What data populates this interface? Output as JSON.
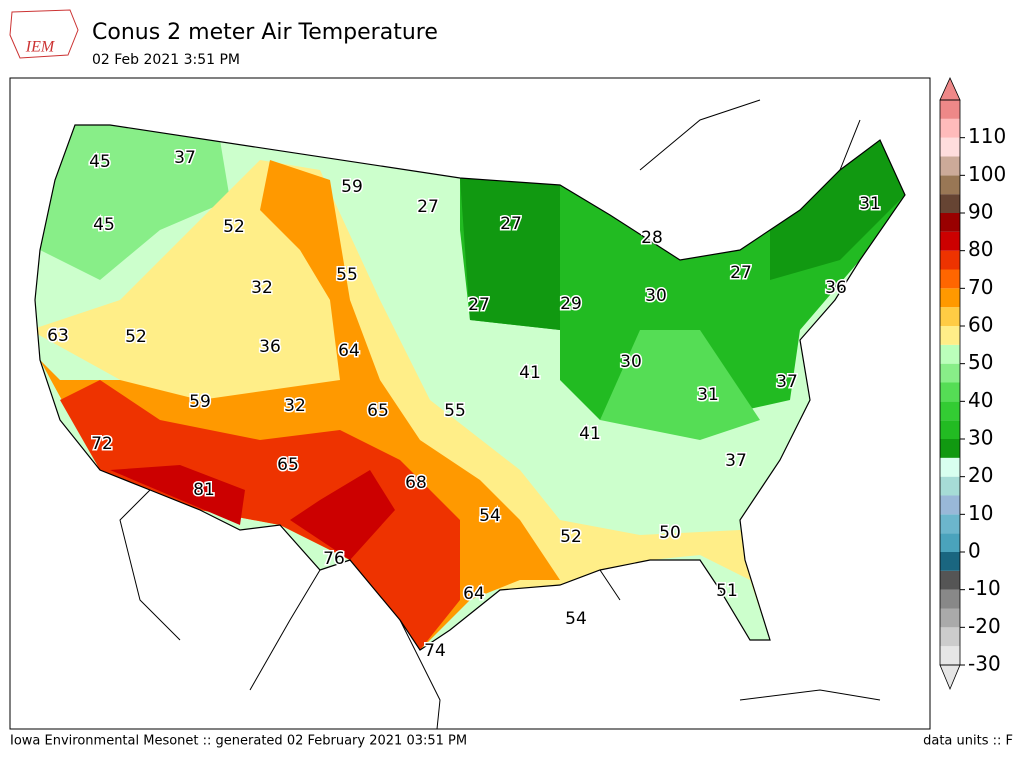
{
  "header": {
    "logo": "IEM",
    "title": "Conus 2 meter Air Temperature",
    "subtitle": "02 Feb 2021 3:51 PM"
  },
  "map": {
    "labels": [
      45,
      37,
      59,
      27,
      27,
      31,
      45,
      52,
      28,
      27,
      55,
      32,
      36,
      30,
      27,
      29,
      63,
      52,
      36,
      64,
      30,
      41,
      37,
      31,
      59,
      32,
      65,
      55,
      41,
      72,
      37,
      65,
      68,
      81,
      54,
      50,
      52,
      76,
      51,
      64,
      54,
      74
    ]
  },
  "colorbar": {
    "lim": [
      -30,
      120
    ],
    "ticks": [
      -30,
      -20,
      -10,
      0,
      10,
      20,
      30,
      40,
      50,
      60,
      70,
      80,
      90,
      100,
      110
    ],
    "colors": [
      "#e6e6e6",
      "#cccccc",
      "#aaaaaa",
      "#888888",
      "#555555",
      "#1a6680",
      "#4aa3bc",
      "#6cb6cc",
      "#99b8d8",
      "#a6dcd6",
      "#d8ffef",
      "#119911",
      "#22bb22",
      "#33cc33",
      "#55dd55",
      "#88ee88",
      "#bbffbb",
      "#ffee88",
      "#ffcc44",
      "#ff9900",
      "#ff6600",
      "#ee3300",
      "#cc0000",
      "#990000",
      "#664433",
      "#997755",
      "#ccaa99",
      "#ffdddd",
      "#ffbbbb",
      "#ee8888"
    ]
  },
  "footer": {
    "left": "Iowa Environmental Mesonet :: generated 02 February 2021 03:51 PM",
    "right": "data units :: F"
  }
}
